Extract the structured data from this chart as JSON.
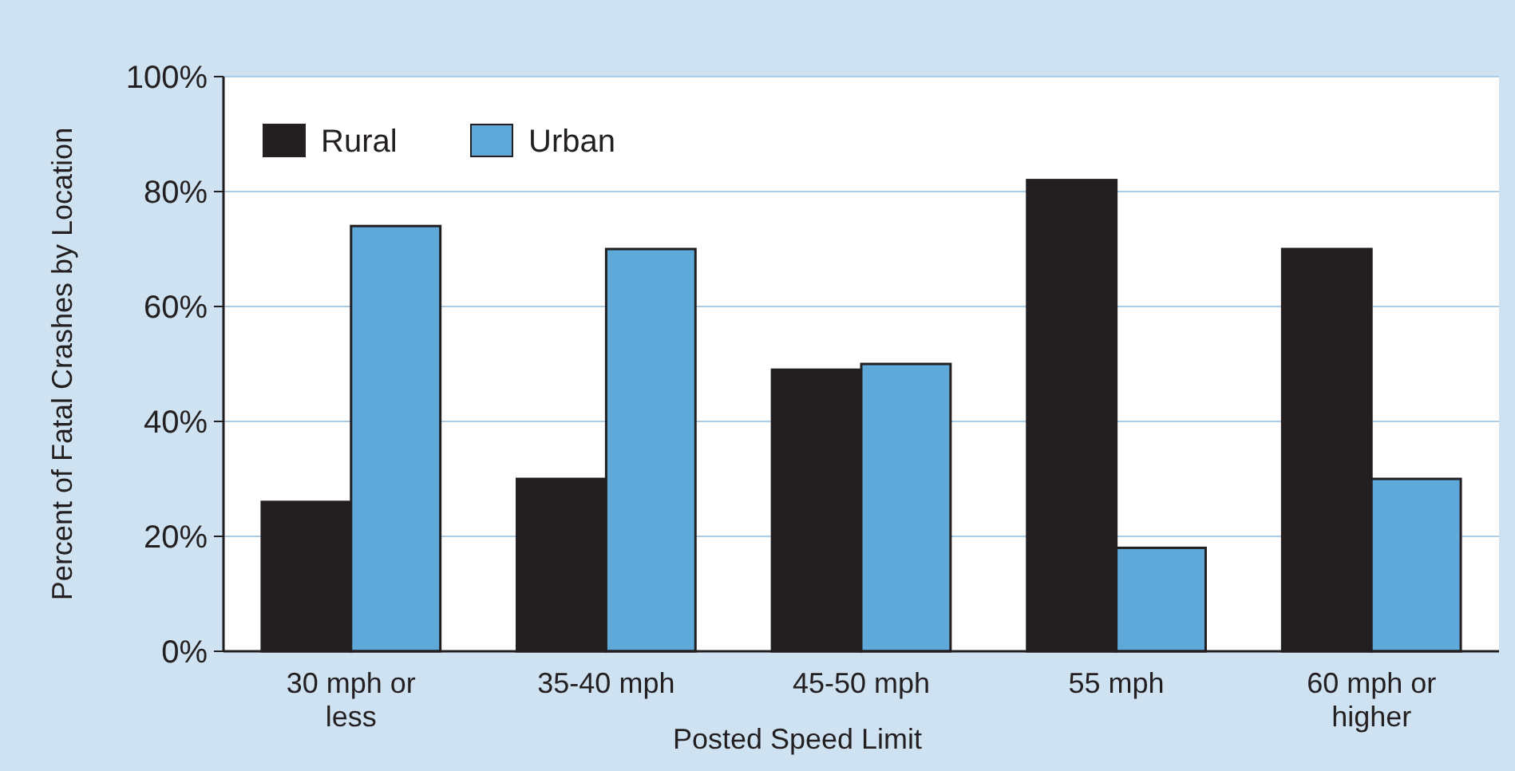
{
  "chart_data": {
    "type": "bar",
    "xlabel": "Posted Speed Limit",
    "ylabel": "Percent of Fatal Crashes by Location",
    "categories": [
      "30 mph or less",
      "35-40 mph",
      "45-50 mph",
      "55 mph",
      "60 mph or higher"
    ],
    "series": [
      {
        "name": "Rural",
        "color": "#231f20",
        "values": [
          26,
          30,
          49,
          82,
          70
        ]
      },
      {
        "name": "Urban",
        "color": "#5ea9d9",
        "values": [
          74,
          70,
          50,
          18,
          30
        ]
      }
    ],
    "ylim": [
      0,
      100
    ],
    "yticks": [
      {
        "value": 0,
        "label": "0%"
      },
      {
        "value": 20,
        "label": "20%"
      },
      {
        "value": 40,
        "label": "40%"
      },
      {
        "value": 60,
        "label": "60%"
      },
      {
        "value": 80,
        "label": "80%"
      },
      {
        "value": 100,
        "label": "100%"
      }
    ],
    "grid": "y",
    "legend": "top left"
  }
}
